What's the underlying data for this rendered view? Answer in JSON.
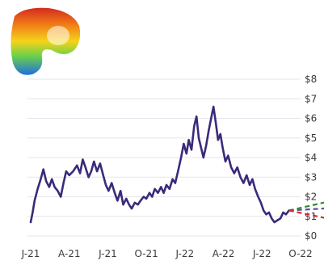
{
  "chart_data": {
    "type": "line",
    "title": "",
    "xlabel": "",
    "ylabel": "",
    "x_tick_labels": [
      "J-21",
      "A-21",
      "J-21",
      "O-21",
      "J-22",
      "A-22",
      "J-22",
      "O-22"
    ],
    "y_tick_labels": [
      "$0",
      "$1",
      "$2",
      "$3",
      "$4",
      "$5",
      "$6",
      "$7",
      "$8"
    ],
    "ylim": [
      0,
      8
    ],
    "grid": true,
    "y_axis_side": "right",
    "series": [
      {
        "color": "#3b2a7a",
        "points": [
          [
            0.0,
            0.7
          ],
          [
            0.05,
            1.2
          ],
          [
            0.1,
            1.8
          ],
          [
            0.18,
            2.4
          ],
          [
            0.26,
            2.9
          ],
          [
            0.33,
            3.4
          ],
          [
            0.4,
            2.8
          ],
          [
            0.48,
            2.5
          ],
          [
            0.55,
            2.9
          ],
          [
            0.62,
            2.5
          ],
          [
            0.7,
            2.3
          ],
          [
            0.78,
            2.0
          ],
          [
            0.85,
            2.7
          ],
          [
            0.92,
            3.3
          ],
          [
            1.0,
            3.1
          ],
          [
            1.1,
            3.3
          ],
          [
            1.2,
            3.6
          ],
          [
            1.28,
            3.2
          ],
          [
            1.35,
            3.9
          ],
          [
            1.42,
            3.5
          ],
          [
            1.5,
            3.0
          ],
          [
            1.57,
            3.3
          ],
          [
            1.64,
            3.8
          ],
          [
            1.72,
            3.3
          ],
          [
            1.8,
            3.7
          ],
          [
            1.88,
            3.1
          ],
          [
            1.95,
            2.6
          ],
          [
            2.02,
            2.3
          ],
          [
            2.1,
            2.7
          ],
          [
            2.18,
            2.2
          ],
          [
            2.25,
            1.8
          ],
          [
            2.33,
            2.3
          ],
          [
            2.4,
            1.6
          ],
          [
            2.48,
            1.9
          ],
          [
            2.55,
            1.6
          ],
          [
            2.62,
            1.4
          ],
          [
            2.7,
            1.7
          ],
          [
            2.78,
            1.6
          ],
          [
            2.85,
            1.8
          ],
          [
            2.93,
            2.0
          ],
          [
            3.0,
            1.9
          ],
          [
            3.08,
            2.2
          ],
          [
            3.15,
            2.0
          ],
          [
            3.22,
            2.4
          ],
          [
            3.3,
            2.2
          ],
          [
            3.38,
            2.5
          ],
          [
            3.45,
            2.2
          ],
          [
            3.52,
            2.6
          ],
          [
            3.6,
            2.4
          ],
          [
            3.68,
            2.9
          ],
          [
            3.75,
            2.7
          ],
          [
            3.82,
            3.3
          ],
          [
            3.9,
            4.0
          ],
          [
            3.97,
            4.7
          ],
          [
            4.04,
            4.2
          ],
          [
            4.1,
            4.9
          ],
          [
            4.17,
            4.4
          ],
          [
            4.24,
            5.6
          ],
          [
            4.3,
            6.1
          ],
          [
            4.36,
            5.0
          ],
          [
            4.42,
            4.5
          ],
          [
            4.48,
            4.0
          ],
          [
            4.55,
            4.6
          ],
          [
            4.62,
            5.4
          ],
          [
            4.68,
            6.0
          ],
          [
            4.74,
            6.6
          ],
          [
            4.8,
            5.8
          ],
          [
            4.86,
            4.9
          ],
          [
            4.92,
            5.2
          ],
          [
            4.98,
            4.5
          ],
          [
            5.05,
            3.8
          ],
          [
            5.12,
            4.1
          ],
          [
            5.2,
            3.5
          ],
          [
            5.28,
            3.2
          ],
          [
            5.36,
            3.5
          ],
          [
            5.44,
            3.0
          ],
          [
            5.52,
            2.7
          ],
          [
            5.6,
            3.1
          ],
          [
            5.68,
            2.6
          ],
          [
            5.75,
            2.9
          ],
          [
            5.82,
            2.4
          ],
          [
            5.9,
            2.0
          ],
          [
            5.97,
            1.7
          ],
          [
            6.04,
            1.3
          ],
          [
            6.11,
            1.1
          ],
          [
            6.18,
            1.2
          ],
          [
            6.25,
            0.9
          ],
          [
            6.32,
            0.7
          ],
          [
            6.4,
            0.8
          ],
          [
            6.48,
            0.9
          ],
          [
            6.55,
            1.2
          ],
          [
            6.62,
            1.1
          ],
          [
            6.7,
            1.3
          ]
        ]
      }
    ],
    "projections": [
      {
        "color": "#2e8b2e",
        "points": [
          [
            6.7,
            1.3
          ],
          [
            8.05,
            1.9
          ]
        ]
      },
      {
        "color": "#5a4fa0",
        "points": [
          [
            6.7,
            1.3
          ],
          [
            8.05,
            1.45
          ]
        ]
      },
      {
        "color": "#cc2f2f",
        "points": [
          [
            6.7,
            1.3
          ],
          [
            8.05,
            0.75
          ]
        ]
      }
    ],
    "y_labels_meta": {
      "side": "right"
    }
  }
}
